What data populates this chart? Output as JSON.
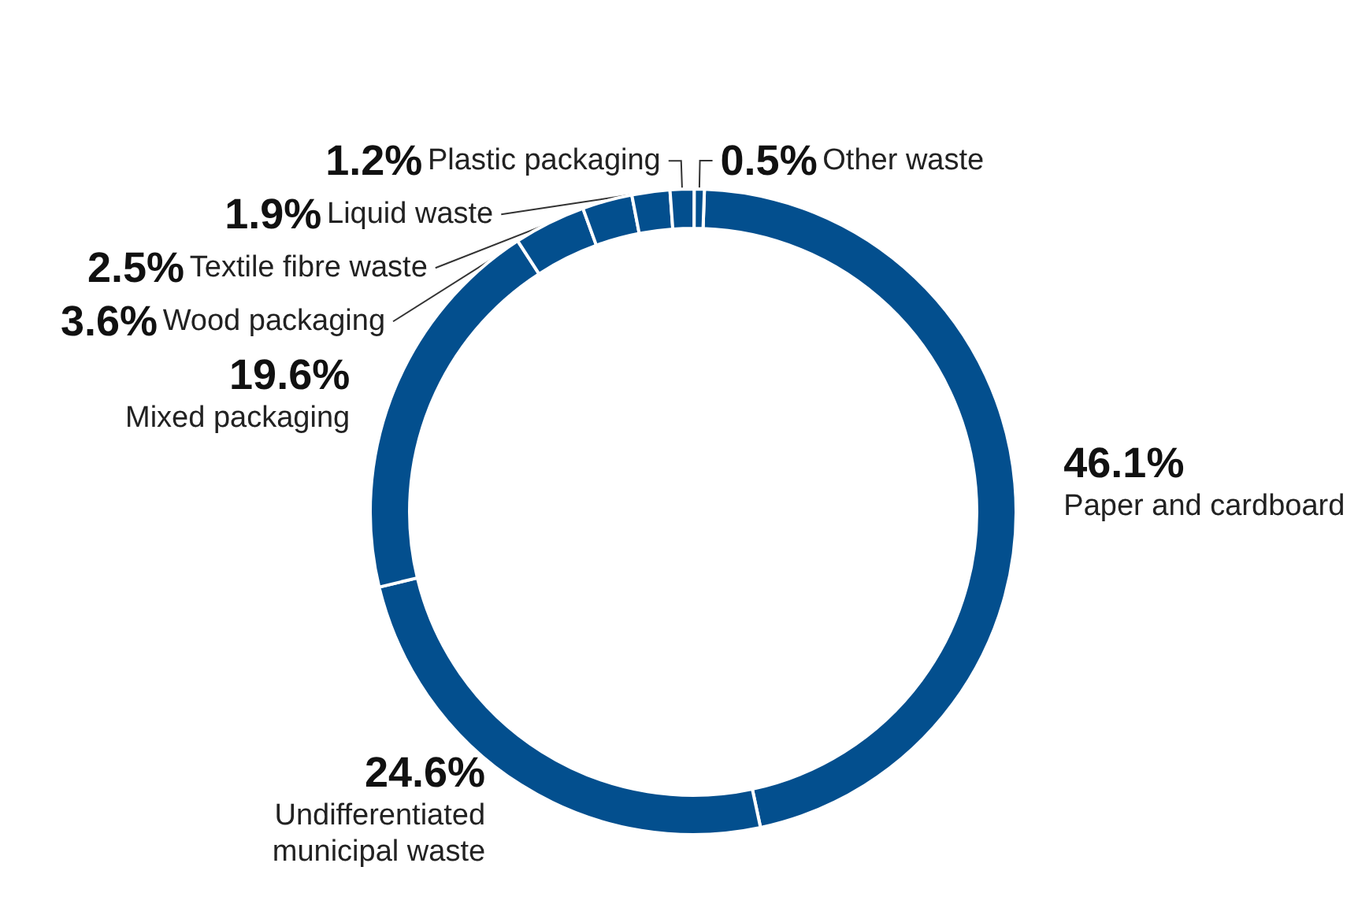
{
  "chart_data": {
    "type": "donut",
    "categories": [
      "Paper and cardboard",
      "Undifferentiated municipal waste",
      "Mixed packaging",
      "Wood packaging",
      "Textile fibre waste",
      "Liquid waste",
      "Plastic packaging",
      "Other waste"
    ],
    "values": [
      46.1,
      24.6,
      19.6,
      3.6,
      2.5,
      1.9,
      1.2,
      0.5
    ],
    "value_labels": [
      "46.1%",
      "24.6%",
      "19.6%",
      "3.6%",
      "2.5%",
      "1.9%",
      "1.2%",
      "0.5%"
    ],
    "colors": [
      "#034f8e",
      "#034f8e",
      "#034f8e",
      "#034f8e",
      "#034f8e",
      "#034f8e",
      "#034f8e",
      "#034f8e"
    ],
    "legend": false
  }
}
